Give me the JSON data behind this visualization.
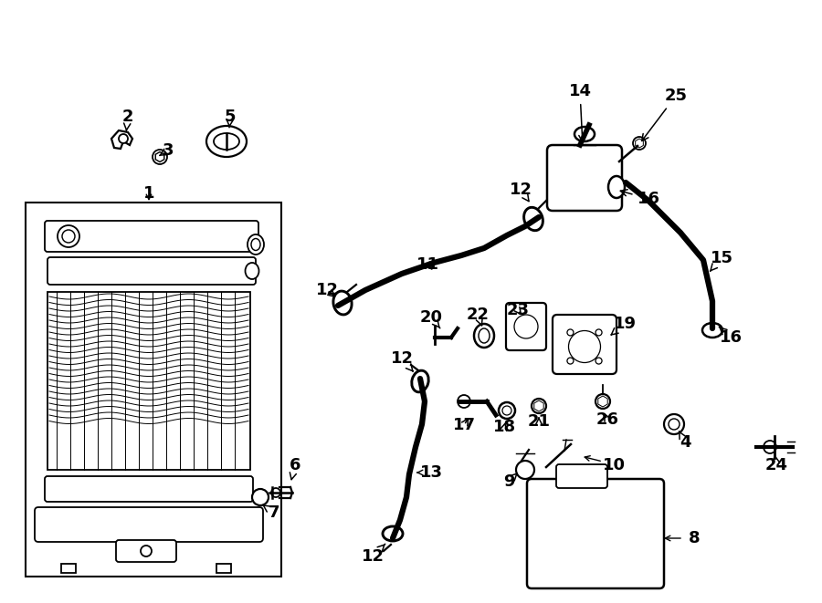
{
  "bg_color": "#ffffff",
  "line_color": "#000000",
  "lw": 1.3,
  "lw_hose": 4.5,
  "lw_thick": 2.0,
  "label_fs": 13,
  "figw": 9.0,
  "figh": 6.61,
  "dpi": 100
}
